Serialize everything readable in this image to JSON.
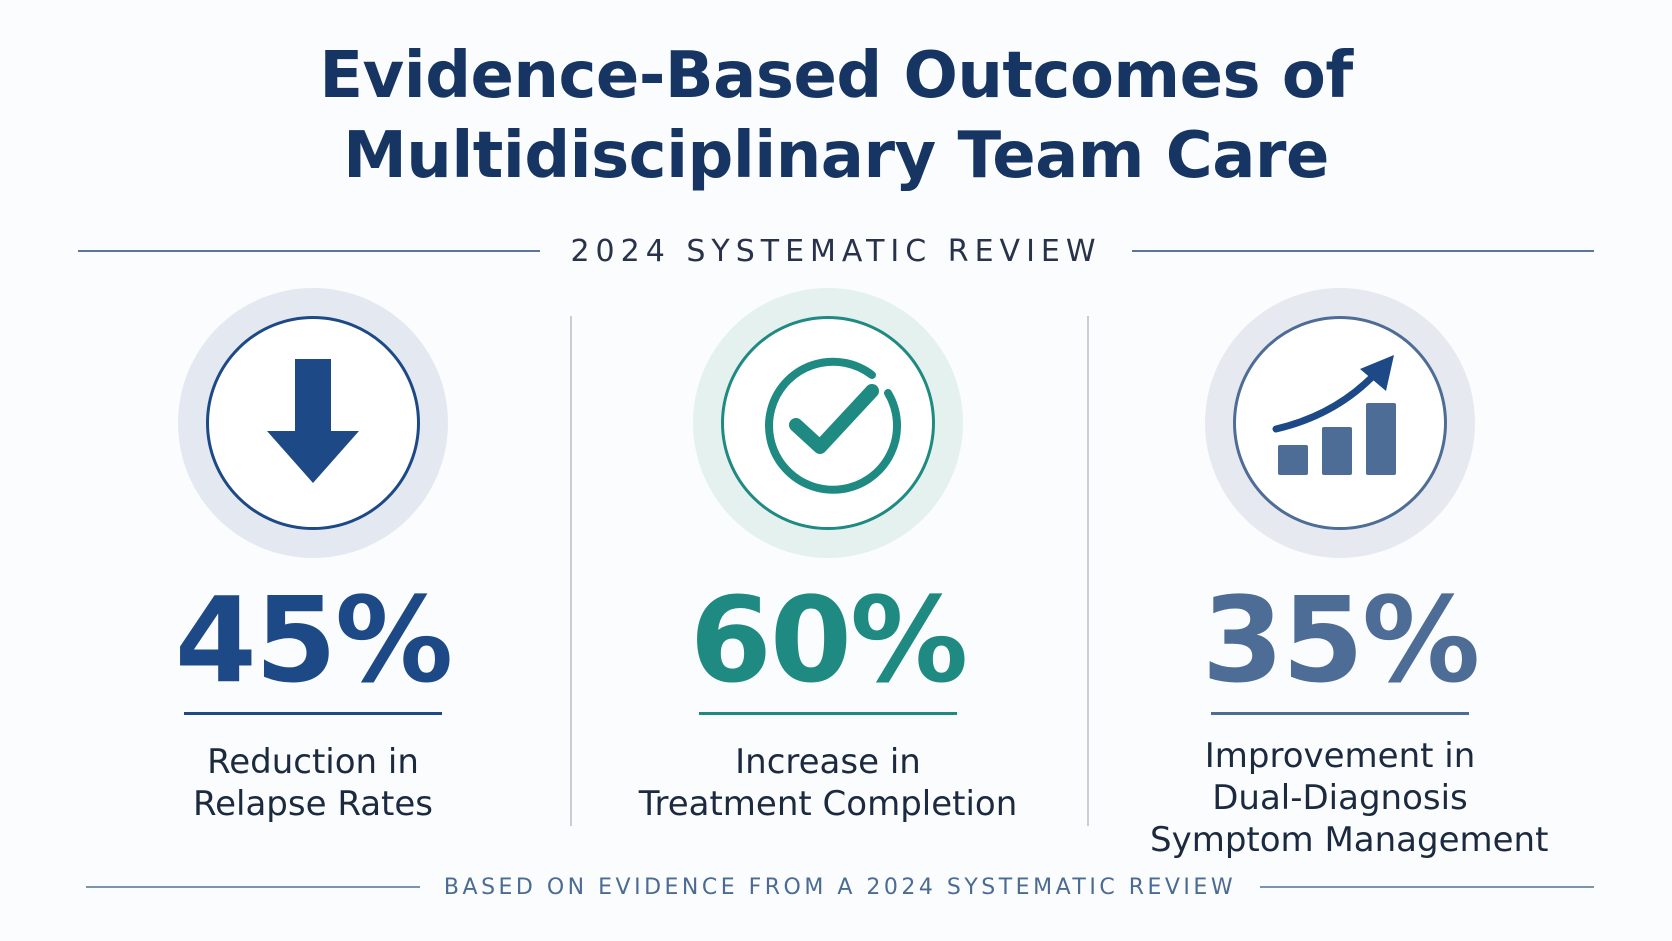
{
  "header": {
    "title_line1": "Evidence-Based Outcomes of",
    "title_line2": "Multidisciplinary Team Care",
    "subtitle": "2024 SYSTEMATIC REVIEW"
  },
  "stats": [
    {
      "value": "45%",
      "label_line1": "Reduction in",
      "label_line2": "Relapse Rates",
      "icon": "arrow-down-icon",
      "color": "#1d4a86",
      "halo_color": "#e4e9f1"
    },
    {
      "value": "60%",
      "label_line1": "Increase in",
      "label_line2": "Treatment Completion",
      "icon": "check-circle-icon",
      "color": "#1f8a82",
      "halo_color": "#e4f1ef"
    },
    {
      "value": "35%",
      "label_line1": "Improvement in",
      "label_line2": "Dual-Diagnosis",
      "label_line3": "Symptom Management",
      "icon": "bar-chart-growth-icon",
      "color": "#4d6c96",
      "halo_color": "#e6eaf0"
    }
  ],
  "footer": {
    "text": "BASED ON EVIDENCE FROM A 2024 SYSTEMATIC REVIEW"
  }
}
